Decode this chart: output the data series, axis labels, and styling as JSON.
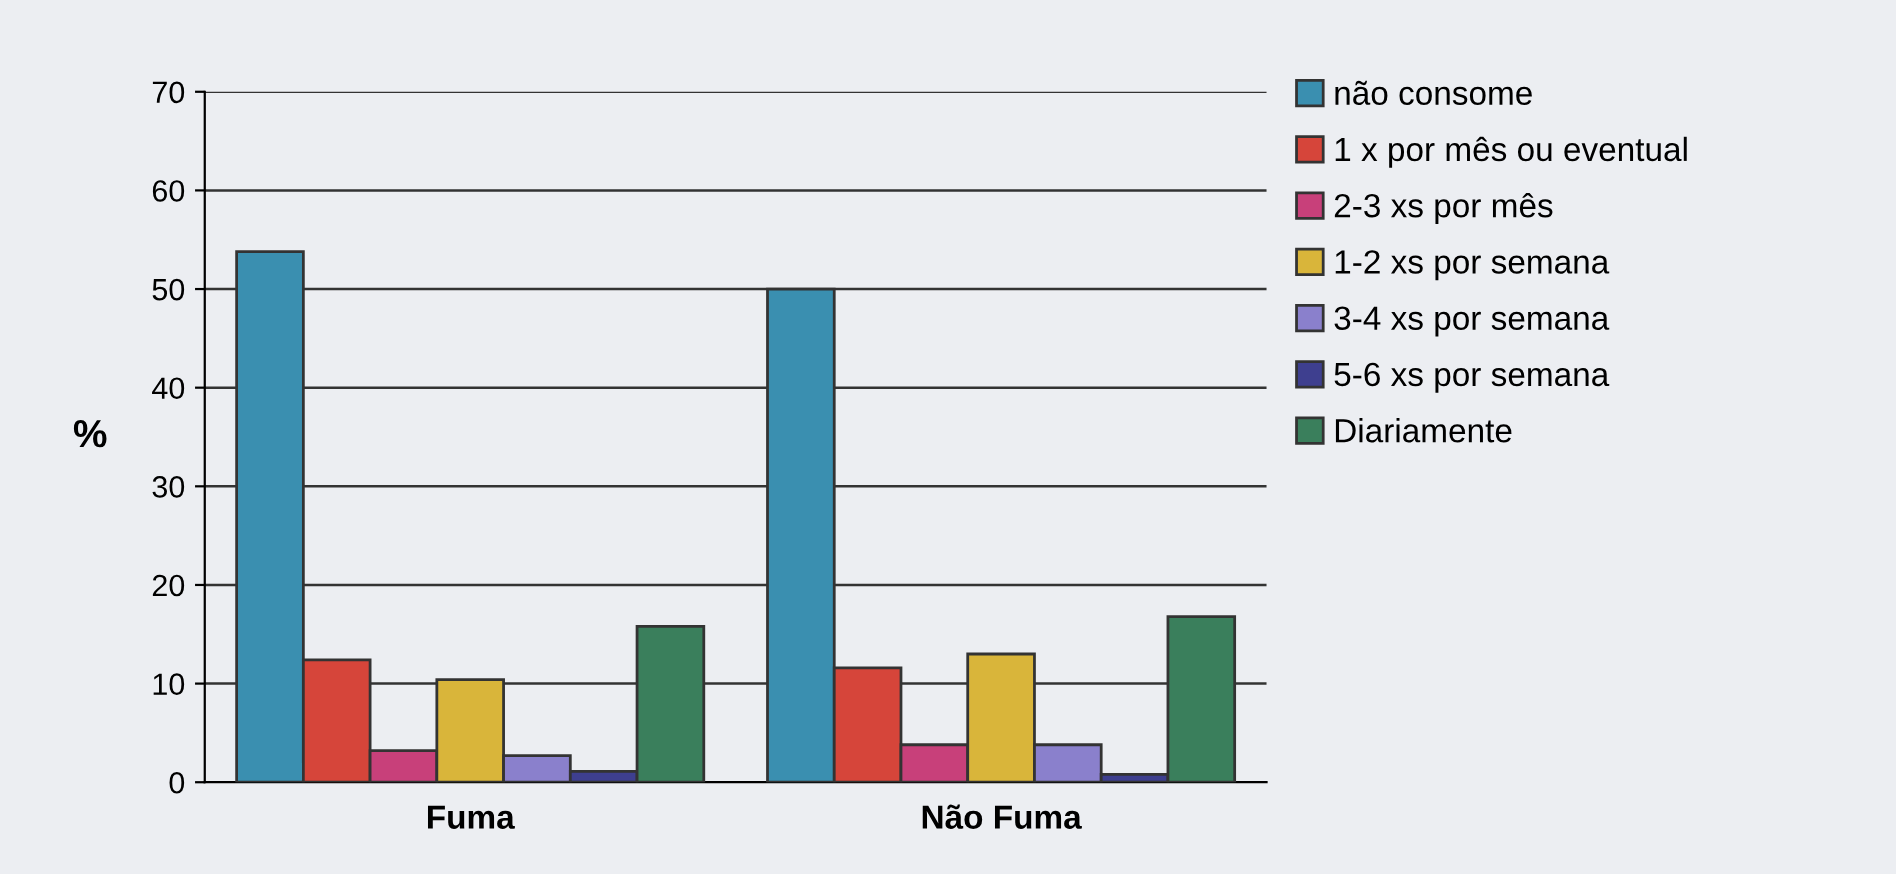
{
  "chart_data": {
    "type": "bar",
    "ylabel": "%",
    "categories": [
      "Fuma",
      "Não Fuma"
    ],
    "series": [
      {
        "name": "não consome",
        "color": "#3a8fb0",
        "values": [
          53.8,
          50
        ]
      },
      {
        "name": "1 x por mês ou eventual",
        "color": "#d6453a",
        "values": [
          12.4,
          11.6
        ]
      },
      {
        "name": "2-3 xs por mês",
        "color": "#c8407a",
        "values": [
          3.2,
          3.8
        ]
      },
      {
        "name": "1-2 xs por semana",
        "color": "#d9b53a",
        "values": [
          10.4,
          13.0
        ]
      },
      {
        "name": "3-4 xs por semana",
        "color": "#8a80cc",
        "values": [
          2.7,
          3.8
        ]
      },
      {
        "name": "5-6 xs por semana",
        "color": "#3e3f8f",
        "values": [
          1.1,
          0.8
        ]
      },
      {
        "name": "Diariamente",
        "color": "#3a7f5c",
        "values": [
          15.8,
          16.8
        ]
      }
    ],
    "ylim": [
      0,
      70
    ],
    "yticks": [
      0,
      10,
      20,
      30,
      40,
      50,
      60,
      70
    ],
    "grid": "y",
    "legend": "right"
  }
}
